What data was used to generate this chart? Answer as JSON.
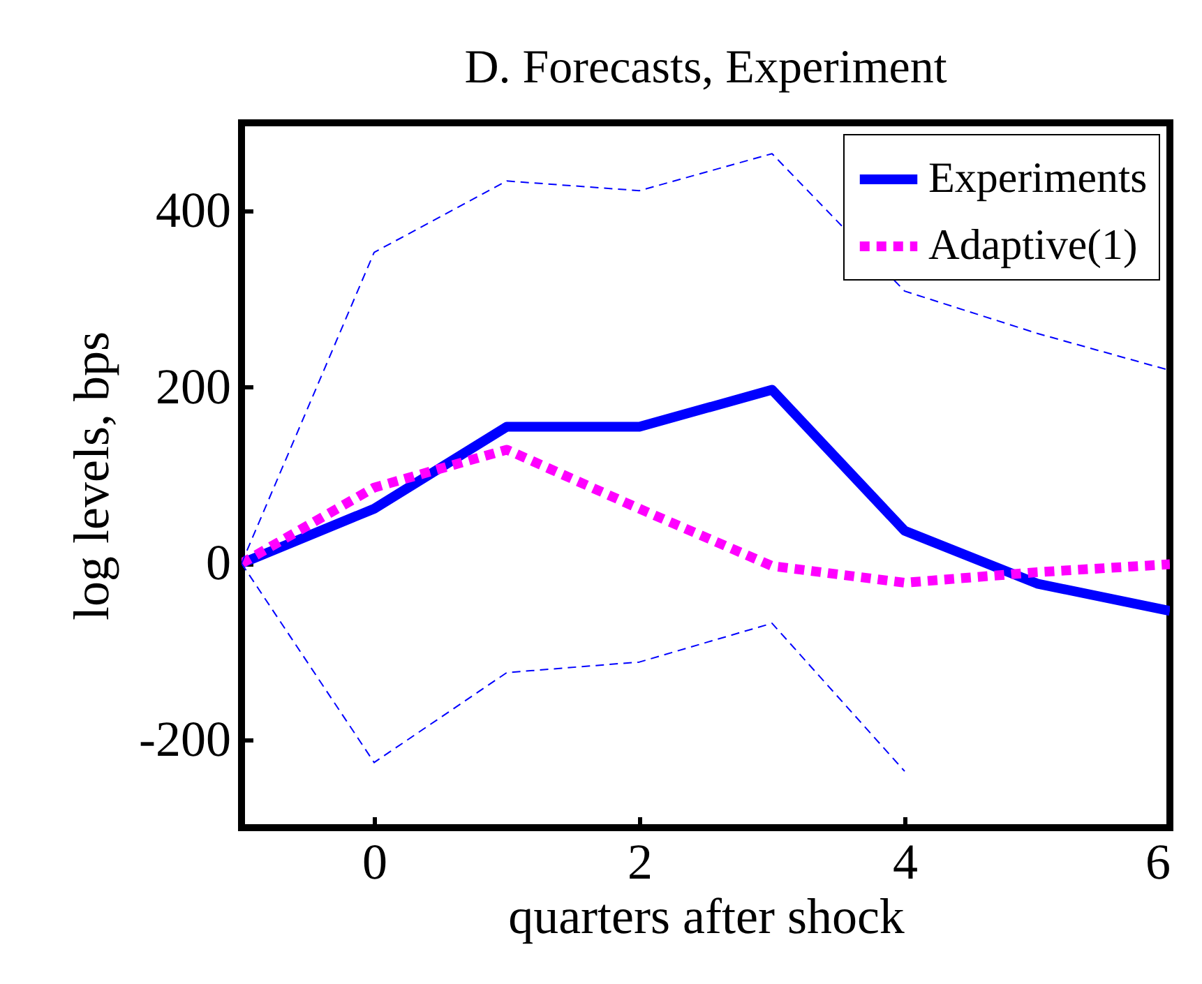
{
  "chart_data": {
    "type": "line",
    "title": "D. Forecasts, Experiment",
    "xlabel": "quarters after shock",
    "ylabel": "log levels, bps",
    "x": [
      -1,
      0,
      1,
      2,
      3,
      4,
      5,
      6
    ],
    "series": [
      {
        "name": "Experiments",
        "color": "#0000ff",
        "line_style": "solid",
        "values": [
          0,
          62,
          155,
          155,
          197,
          37,
          -23,
          -54
        ]
      },
      {
        "name": "Adaptive(1)",
        "color": "#ff00ff",
        "line_style": "dotted",
        "values": [
          0,
          86,
          129,
          62,
          -3,
          -22,
          -10,
          -1
        ]
      },
      {
        "color": "#0000ff",
        "line_style": "dashed",
        "values": [
          0,
          353,
          434,
          423,
          465,
          309,
          261,
          219
        ]
      },
      {
        "color": "#0000ff",
        "line_style": "dashed",
        "values": [
          0,
          -226,
          -124,
          -112,
          -68,
          -236,
          null,
          null
        ]
      }
    ],
    "xlim": [
      -1,
      6
    ],
    "xticks": [
      0,
      2,
      4,
      6
    ],
    "ylim": [
      -300,
      500
    ],
    "yticks": [
      -200,
      0,
      200,
      400
    ],
    "grid": false,
    "legend": "top right"
  }
}
